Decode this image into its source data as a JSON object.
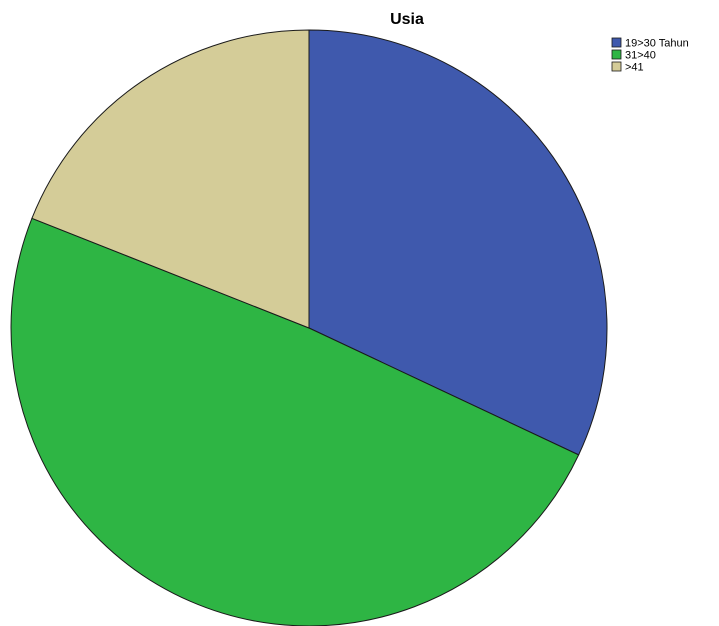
{
  "chart_data": {
    "type": "pie",
    "title": "Usia",
    "categories": [
      "19>30 Tahun",
      "31>40",
      ">41"
    ],
    "values": [
      32,
      49,
      19
    ],
    "colors": [
      "#3f59ad",
      "#2eb544",
      "#d4cc98"
    ],
    "start_angle_deg": 0,
    "direction": "clockwise",
    "legend_position": "top-right"
  }
}
